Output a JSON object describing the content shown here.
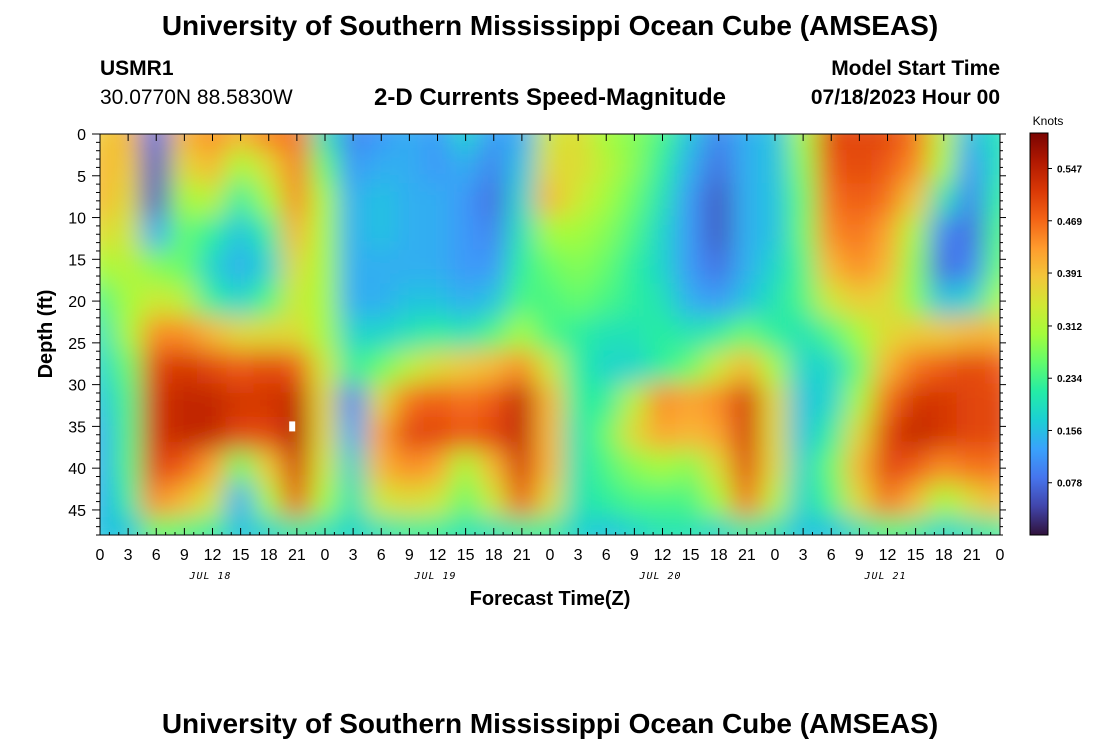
{
  "header": {
    "title": "University of Southern Mississippi Ocean Cube (AMSEAS)",
    "station": "USMR1",
    "coords": "30.0770N  88.5830W",
    "subtitle": "2-D Currents Speed-Magnitude",
    "model_label": "Model Start Time",
    "model_time": "07/18/2023 Hour 00"
  },
  "footer": {
    "title": "University of Southern Mississippi Ocean Cube (AMSEAS)"
  },
  "colors": {
    "scale": [
      "#30123b",
      "#4145ab",
      "#4675ed",
      "#39a2fc",
      "#1bcfd4",
      "#24eca6",
      "#61fc6c",
      "#a4fc3b",
      "#d1e834",
      "#f3c63a",
      "#fe9b2d",
      "#f36315",
      "#d93806",
      "#b11901",
      "#7a0402"
    ]
  },
  "chart_data": {
    "type": "heatmap",
    "title": "2-D Currents Speed-Magnitude",
    "xlabel": "Forecast Time(Z)",
    "ylabel": "Depth (ft)",
    "x_tick_labels": [
      "0",
      "3",
      "6",
      "9",
      "12",
      "15",
      "18",
      "21",
      "0",
      "3",
      "6",
      "9",
      "12",
      "15",
      "18",
      "21",
      "0",
      "3",
      "6",
      "9",
      "12",
      "15",
      "18",
      "21",
      "0",
      "3",
      "6",
      "9",
      "12",
      "15",
      "18",
      "21",
      "0"
    ],
    "x_range_hours": [
      0,
      96
    ],
    "date_labels": [
      "JUL 18",
      "JUL 19",
      "JUL 20",
      "JUL 21"
    ],
    "y_ticks": [
      0,
      5,
      10,
      15,
      20,
      25,
      30,
      35,
      40,
      45
    ],
    "y_range_ft": [
      0,
      48
    ],
    "y_inverted": true,
    "colorbar": {
      "title": "Knots",
      "ticks": [
        "0.547",
        "0.469",
        "0.391",
        "0.312",
        "0.234",
        "0.156",
        "0.078"
      ],
      "range": [
        0.0,
        0.6
      ]
    },
    "grid": {
      "x_hours": [
        0,
        3,
        6,
        9,
        12,
        15,
        18,
        21,
        24,
        27,
        30,
        33,
        36,
        39,
        42,
        45,
        48,
        51,
        54,
        57,
        60,
        63,
        66,
        69,
        72,
        75,
        78,
        81,
        84,
        87,
        90,
        93,
        96
      ],
      "y_depth_ft": [
        0,
        4,
        8,
        12,
        16,
        20,
        24,
        28,
        32,
        36,
        40,
        44,
        48
      ],
      "speed_knots": [
        [
          0.38,
          0.4,
          0.08,
          0.4,
          0.44,
          0.4,
          0.45,
          0.46,
          0.2,
          0.1,
          0.12,
          0.14,
          0.12,
          0.18,
          0.12,
          0.14,
          0.34,
          0.36,
          0.3,
          0.28,
          0.24,
          0.16,
          0.1,
          0.14,
          0.16,
          0.3,
          0.5,
          0.5,
          0.5,
          0.46,
          0.32,
          0.15,
          0.2
        ],
        [
          0.4,
          0.38,
          0.06,
          0.36,
          0.4,
          0.3,
          0.36,
          0.45,
          0.26,
          0.12,
          0.14,
          0.14,
          0.12,
          0.14,
          0.1,
          0.16,
          0.36,
          0.36,
          0.32,
          0.28,
          0.22,
          0.14,
          0.08,
          0.14,
          0.16,
          0.28,
          0.48,
          0.5,
          0.48,
          0.44,
          0.3,
          0.12,
          0.2
        ],
        [
          0.4,
          0.36,
          0.06,
          0.3,
          0.32,
          0.22,
          0.3,
          0.44,
          0.3,
          0.14,
          0.16,
          0.14,
          0.14,
          0.12,
          0.08,
          0.18,
          0.4,
          0.34,
          0.3,
          0.26,
          0.2,
          0.12,
          0.06,
          0.14,
          0.16,
          0.26,
          0.46,
          0.48,
          0.46,
          0.38,
          0.2,
          0.1,
          0.22
        ],
        [
          0.36,
          0.34,
          0.14,
          0.26,
          0.22,
          0.16,
          0.22,
          0.4,
          0.3,
          0.14,
          0.16,
          0.14,
          0.14,
          0.12,
          0.1,
          0.2,
          0.3,
          0.3,
          0.28,
          0.24,
          0.18,
          0.12,
          0.06,
          0.14,
          0.16,
          0.26,
          0.44,
          0.46,
          0.42,
          0.3,
          0.1,
          0.08,
          0.24
        ],
        [
          0.3,
          0.32,
          0.28,
          0.26,
          0.18,
          0.14,
          0.18,
          0.36,
          0.3,
          0.14,
          0.14,
          0.14,
          0.14,
          0.12,
          0.12,
          0.22,
          0.26,
          0.28,
          0.26,
          0.22,
          0.18,
          0.12,
          0.08,
          0.14,
          0.18,
          0.24,
          0.4,
          0.44,
          0.4,
          0.28,
          0.08,
          0.1,
          0.26
        ],
        [
          0.24,
          0.3,
          0.34,
          0.32,
          0.22,
          0.18,
          0.24,
          0.34,
          0.3,
          0.14,
          0.14,
          0.16,
          0.16,
          0.14,
          0.16,
          0.24,
          0.24,
          0.26,
          0.24,
          0.22,
          0.2,
          0.14,
          0.12,
          0.16,
          0.2,
          0.24,
          0.34,
          0.38,
          0.36,
          0.28,
          0.16,
          0.18,
          0.3
        ],
        [
          0.2,
          0.3,
          0.44,
          0.44,
          0.4,
          0.36,
          0.36,
          0.36,
          0.3,
          0.18,
          0.18,
          0.2,
          0.22,
          0.2,
          0.24,
          0.3,
          0.24,
          0.22,
          0.2,
          0.2,
          0.22,
          0.2,
          0.22,
          0.26,
          0.22,
          0.2,
          0.24,
          0.3,
          0.36,
          0.38,
          0.38,
          0.4,
          0.4
        ],
        [
          0.18,
          0.26,
          0.5,
          0.52,
          0.5,
          0.48,
          0.5,
          0.48,
          0.34,
          0.22,
          0.26,
          0.32,
          0.36,
          0.38,
          0.4,
          0.44,
          0.34,
          0.22,
          0.18,
          0.18,
          0.22,
          0.26,
          0.34,
          0.4,
          0.3,
          0.18,
          0.18,
          0.26,
          0.4,
          0.46,
          0.48,
          0.5,
          0.48
        ],
        [
          0.16,
          0.24,
          0.52,
          0.54,
          0.54,
          0.52,
          0.52,
          0.54,
          0.36,
          0.1,
          0.36,
          0.46,
          0.48,
          0.46,
          0.48,
          0.54,
          0.4,
          0.22,
          0.22,
          0.32,
          0.44,
          0.42,
          0.44,
          0.52,
          0.36,
          0.16,
          0.18,
          0.3,
          0.46,
          0.52,
          0.52,
          0.5,
          0.5
        ],
        [
          0.14,
          0.24,
          0.52,
          0.54,
          0.54,
          0.5,
          0.5,
          0.55,
          0.36,
          0.14,
          0.42,
          0.5,
          0.5,
          0.48,
          0.5,
          0.54,
          0.4,
          0.2,
          0.26,
          0.36,
          0.42,
          0.4,
          0.42,
          0.52,
          0.36,
          0.16,
          0.22,
          0.36,
          0.5,
          0.54,
          0.52,
          0.5,
          0.5
        ],
        [
          0.14,
          0.24,
          0.5,
          0.48,
          0.42,
          0.26,
          0.38,
          0.52,
          0.34,
          0.18,
          0.4,
          0.44,
          0.42,
          0.3,
          0.4,
          0.52,
          0.4,
          0.2,
          0.24,
          0.28,
          0.3,
          0.28,
          0.36,
          0.5,
          0.36,
          0.18,
          0.26,
          0.4,
          0.5,
          0.48,
          0.44,
          0.46,
          0.46
        ],
        [
          0.14,
          0.22,
          0.44,
          0.4,
          0.34,
          0.14,
          0.3,
          0.48,
          0.3,
          0.2,
          0.34,
          0.36,
          0.34,
          0.26,
          0.34,
          0.48,
          0.36,
          0.2,
          0.22,
          0.24,
          0.24,
          0.24,
          0.3,
          0.46,
          0.32,
          0.18,
          0.24,
          0.36,
          0.46,
          0.4,
          0.3,
          0.36,
          0.4
        ],
        [
          0.16,
          0.16,
          0.26,
          0.24,
          0.22,
          0.16,
          0.18,
          0.22,
          0.2,
          0.18,
          0.2,
          0.22,
          0.22,
          0.2,
          0.2,
          0.22,
          0.22,
          0.18,
          0.16,
          0.18,
          0.2,
          0.2,
          0.18,
          0.22,
          0.2,
          0.16,
          0.16,
          0.2,
          0.24,
          0.22,
          0.18,
          0.2,
          0.22
        ]
      ]
    },
    "marker": {
      "hour": 20.5,
      "depth_ft": 35
    }
  }
}
